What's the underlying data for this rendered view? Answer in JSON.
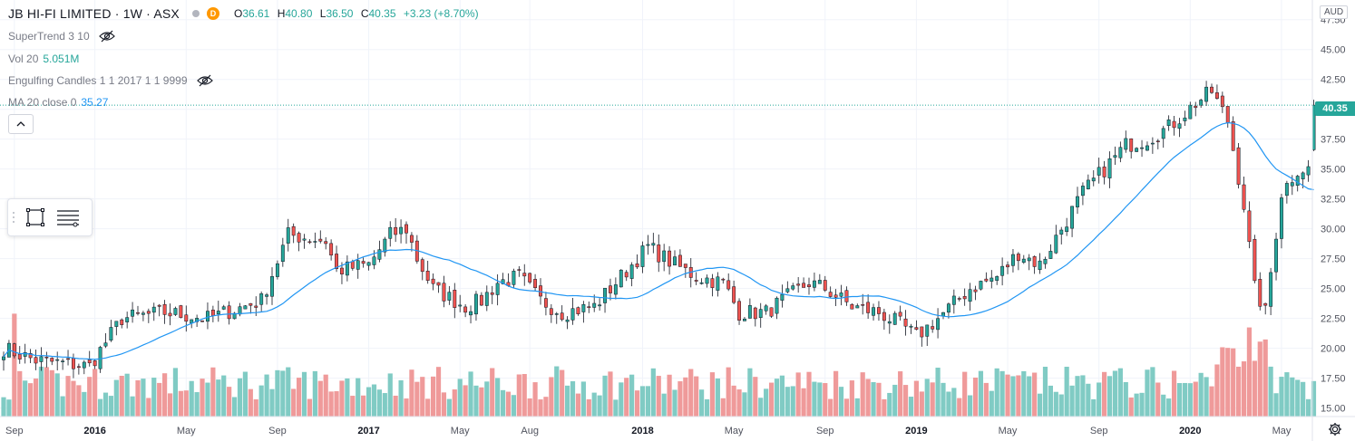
{
  "header": {
    "symbol_title": "JB HI-FI LIMITED · 1W · ASX",
    "delay_badge": "D",
    "ohlc": [
      {
        "label": "O",
        "value": "36.61"
      },
      {
        "label": "H",
        "value": "40.80"
      },
      {
        "label": "L",
        "value": "36.50"
      },
      {
        "label": "C",
        "value": "40.35"
      },
      {
        "label": "",
        "value": "+3.23 (+8.70%)"
      }
    ]
  },
  "indicators": {
    "supertrend": {
      "label": "SuperTrend 3 10"
    },
    "volume": {
      "label": "Vol 20",
      "value": "5.051M"
    },
    "engulfing": {
      "label": "Engulfing Candles 1 1 2017 1 1 9999"
    },
    "ma": {
      "label": "MA 20 close 0",
      "value": "35.27"
    }
  },
  "currency": "AUD",
  "last_price": "40.35",
  "colors": {
    "up": "#26a69a",
    "down": "#ef5350",
    "vol_up": "#80cbc4",
    "vol_down": "#ef9a9a",
    "ma": "#2196f3",
    "grid": "#f0f3fa"
  },
  "icons": {
    "eye_off": "eye-off-icon",
    "collapse": "chevron-up-icon",
    "rectangle_tool": "rectangle-icon",
    "settings_tool": "lines-settings-icon",
    "gear": "gear-icon"
  },
  "chart_data": {
    "type": "candlestick",
    "title": "JB HI-FI LIMITED · 1W · ASX",
    "currency": "AUD",
    "ylim": [
      13.8,
      48.5
    ],
    "y_ticks": [
      "47.50",
      "45.00",
      "42.50",
      "40.00",
      "37.50",
      "35.00",
      "32.50",
      "30.00",
      "27.50",
      "25.00",
      "22.50",
      "20.00",
      "17.50",
      "15.00"
    ],
    "x_ticks": [
      {
        "label": "Sep",
        "index": 2
      },
      {
        "label": "2016",
        "index": 17,
        "bold": true
      },
      {
        "label": "May",
        "index": 34
      },
      {
        "label": "Sep",
        "index": 51
      },
      {
        "label": "2017",
        "index": 68,
        "bold": true
      },
      {
        "label": "May",
        "index": 85
      },
      {
        "label": "Aug",
        "index": 98
      },
      {
        "label": "2018",
        "index": 119,
        "bold": true
      },
      {
        "label": "May",
        "index": 136
      },
      {
        "label": "Sep",
        "index": 153
      },
      {
        "label": "2019",
        "index": 170,
        "bold": true
      },
      {
        "label": "May",
        "index": 187
      },
      {
        "label": "Sep",
        "index": 204
      },
      {
        "label": "2020",
        "index": 221,
        "bold": true
      },
      {
        "label": "May",
        "index": 238
      }
    ],
    "waypoints": [
      [
        0,
        20
      ],
      [
        6,
        19
      ],
      [
        16,
        18.5
      ],
      [
        22,
        22.5
      ],
      [
        30,
        23
      ],
      [
        38,
        22.5
      ],
      [
        48,
        24
      ],
      [
        53,
        29.5
      ],
      [
        60,
        29
      ],
      [
        62,
        26.5
      ],
      [
        68,
        27
      ],
      [
        72,
        29.5
      ],
      [
        75,
        30
      ],
      [
        77,
        27.5
      ],
      [
        80,
        25
      ],
      [
        86,
        23.5
      ],
      [
        89,
        24
      ],
      [
        92,
        25.5
      ],
      [
        96,
        26
      ],
      [
        100,
        24
      ],
      [
        104,
        23
      ],
      [
        110,
        23.5
      ],
      [
        115,
        26
      ],
      [
        120,
        28.5
      ],
      [
        125,
        27
      ],
      [
        129,
        26
      ],
      [
        134,
        25.5
      ],
      [
        137,
        23
      ],
      [
        142,
        23
      ],
      [
        145,
        24
      ],
      [
        150,
        25.5
      ],
      [
        153,
        25
      ],
      [
        158,
        23.5
      ],
      [
        163,
        23
      ],
      [
        167,
        22
      ],
      [
        170,
        21
      ],
      [
        174,
        22.5
      ],
      [
        180,
        25
      ],
      [
        185,
        26
      ],
      [
        189,
        28
      ],
      [
        193,
        27
      ],
      [
        197,
        30
      ],
      [
        201,
        33
      ],
      [
        205,
        35
      ],
      [
        209,
        37
      ],
      [
        213,
        37.5
      ],
      [
        217,
        38.5
      ],
      [
        222,
        40.5
      ],
      [
        225,
        41.5
      ],
      [
        228,
        39
      ],
      [
        231,
        32
      ],
      [
        233,
        25
      ],
      [
        235,
        23
      ],
      [
        238,
        33
      ],
      [
        241,
        35
      ],
      [
        243,
        35
      ],
      [
        244,
        40.35
      ]
    ],
    "volumes": {
      "min": 14.5,
      "max": 22.9
    },
    "ma_label": "MA 20 close 0",
    "ma_last": 35.27,
    "candle_count": 245
  }
}
